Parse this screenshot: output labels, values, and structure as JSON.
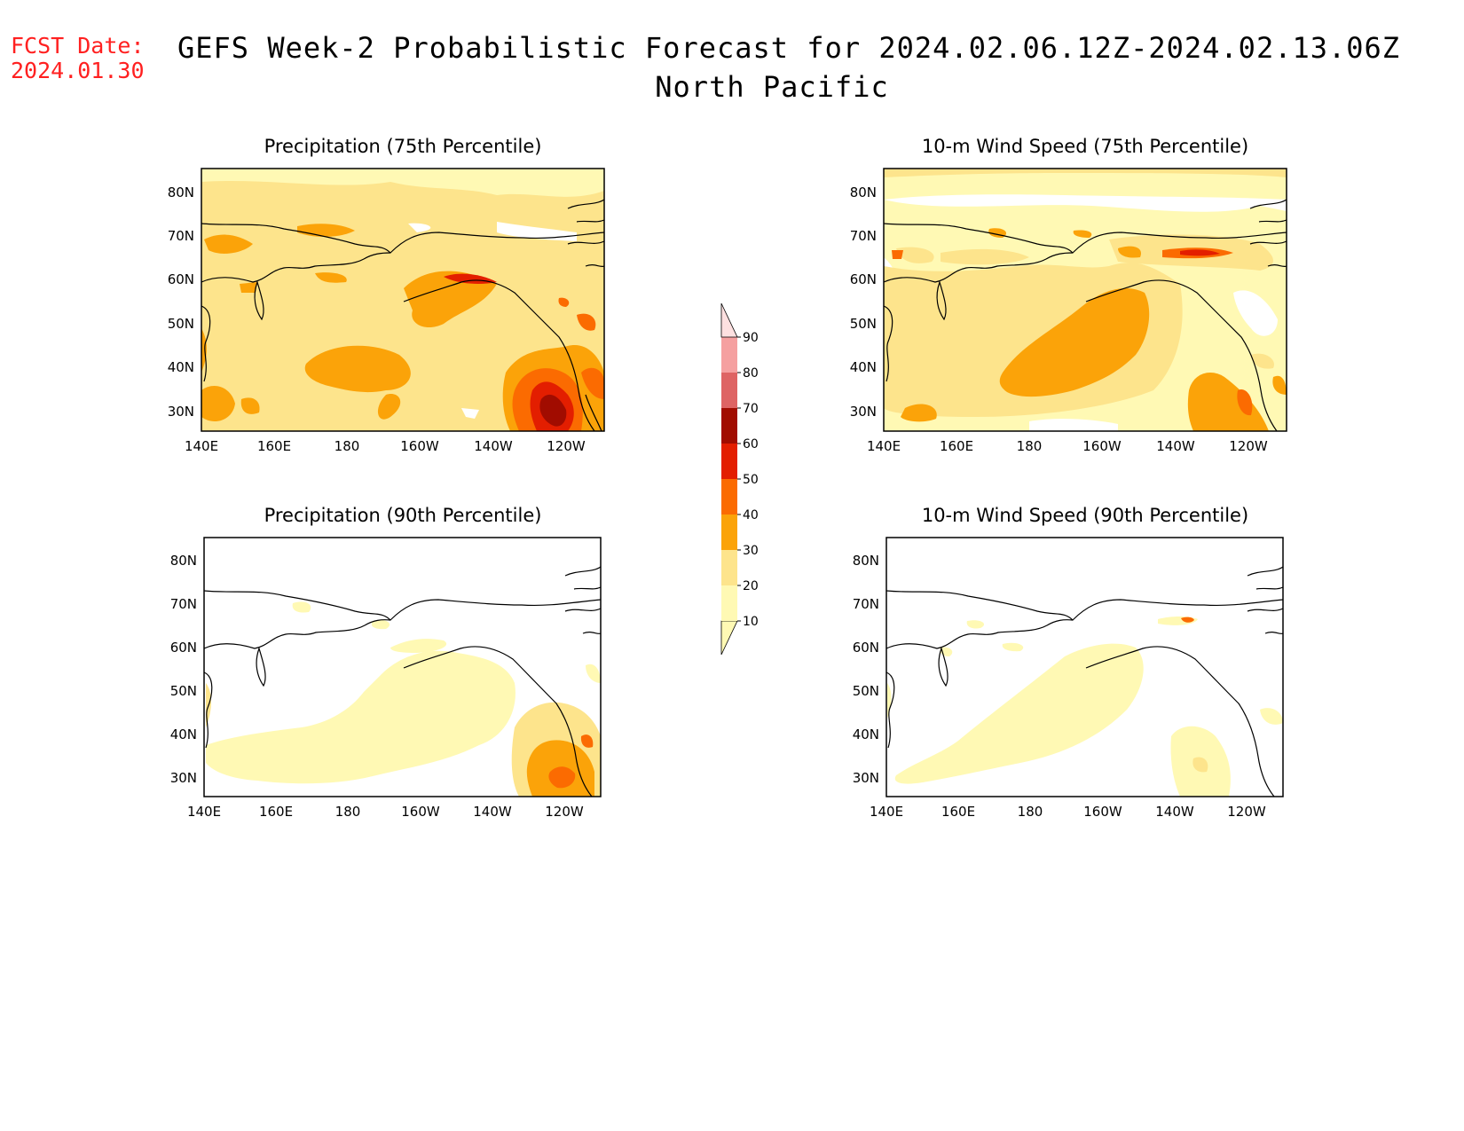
{
  "header": {
    "fcst_label": "FCST Date:",
    "fcst_date": "2024.01.30",
    "title_line1": "GEFS Week-2 Probabilistic Forecast for 2024.02.06.12Z-2024.02.13.06Z",
    "title_line2": "North Pacific"
  },
  "axes": {
    "lat_labels": [
      "80N",
      "70N",
      "60N",
      "50N",
      "40N",
      "30N"
    ],
    "lon_labels": [
      "140E",
      "160E",
      "180",
      "160W",
      "140W",
      "120W"
    ]
  },
  "panels": [
    {
      "id": "precip75",
      "title": "Precipitation (75th Percentile)"
    },
    {
      "id": "wind75",
      "title": "10-m Wind Speed (75th Percentile)"
    },
    {
      "id": "precip90",
      "title": "Precipitation (90th Percentile)"
    },
    {
      "id": "wind90",
      "title": "10-m Wind Speed (90th Percentile)"
    }
  ],
  "colorbar": {
    "levels": [
      "10",
      "20",
      "30",
      "40",
      "50",
      "60",
      "70",
      "80",
      "90"
    ],
    "colors": [
      "#fff9b4",
      "#fde48c",
      "#fba309",
      "#fb6b01",
      "#e31e00",
      "#a10c00",
      "#de6464",
      "#f5a0a0",
      "#fde0e0"
    ]
  }
}
